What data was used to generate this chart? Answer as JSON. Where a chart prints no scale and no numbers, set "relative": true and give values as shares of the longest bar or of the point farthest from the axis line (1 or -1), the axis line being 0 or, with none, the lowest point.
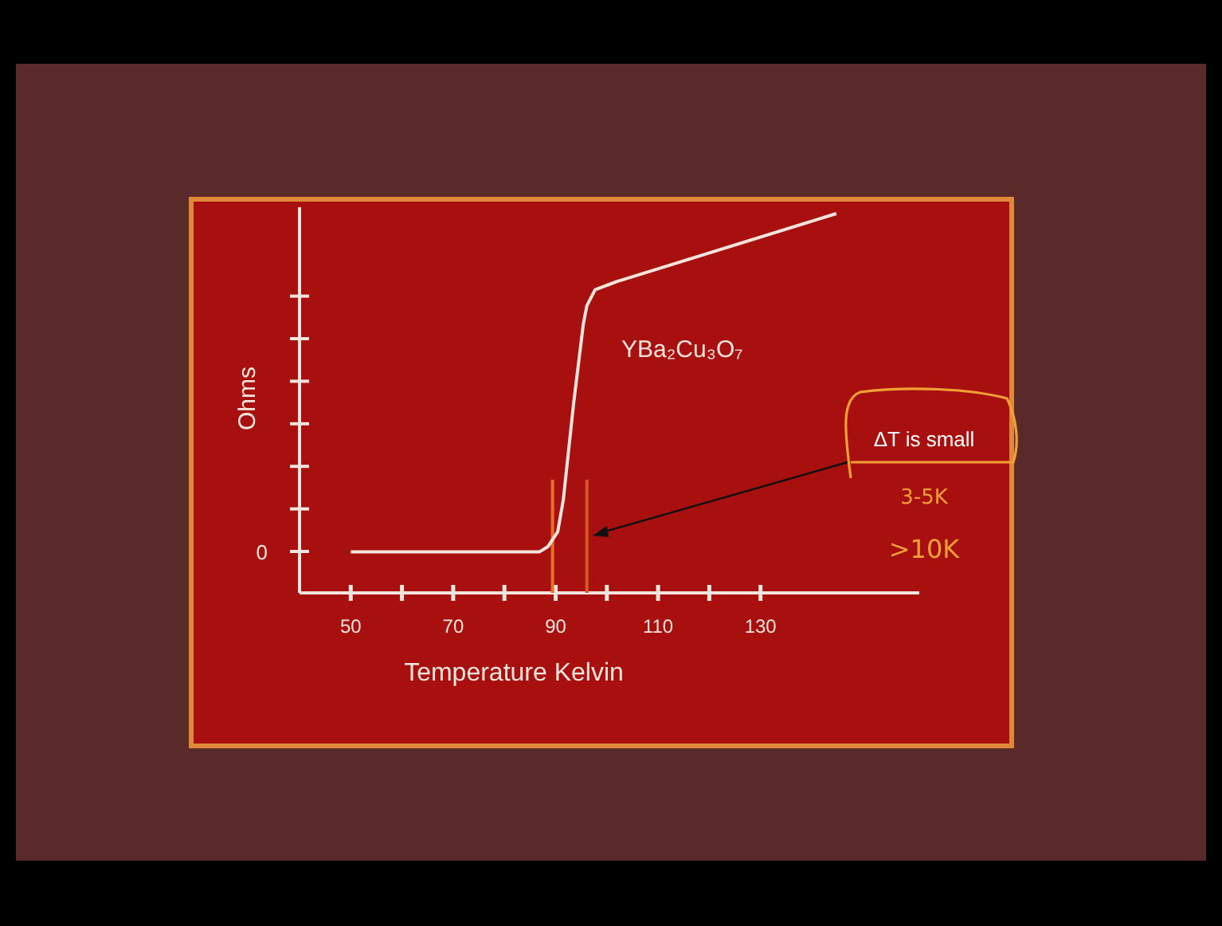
{
  "chart_data": {
    "type": "line",
    "xlabel": "Temperature Kelvin",
    "ylabel": "Ohms",
    "relative": true,
    "x": [
      50,
      86.8,
      88.5,
      90.4,
      91.5,
      93.5,
      95.4,
      96.1,
      97.7,
      101.8,
      144.8
    ],
    "values": [
      0.108,
      0.108,
      0.122,
      0.161,
      0.245,
      0.498,
      0.708,
      0.757,
      0.799,
      0.82,
      1
    ],
    "color": "#f4e4dc",
    "xlim": [
      40,
      161
    ],
    "xticks": [
      50,
      {
        "value": 60,
        "label": null
      },
      70,
      {
        "value": 80,
        "label": null
      },
      90,
      {
        "value": 100,
        "label": null
      },
      110,
      {
        "value": 120,
        "label": null
      },
      130
    ],
    "ref_lines": [
      {
        "axis": "x",
        "value": 89.4,
        "color": "#e8702a"
      },
      {
        "axis": "x",
        "value": 96.1,
        "color": "#d85a20"
      }
    ],
    "annotations": [
      "0",
      "YBa₂Cu₃O₇",
      "ΔT is small",
      "3-5K",
      ">10K"
    ]
  }
}
